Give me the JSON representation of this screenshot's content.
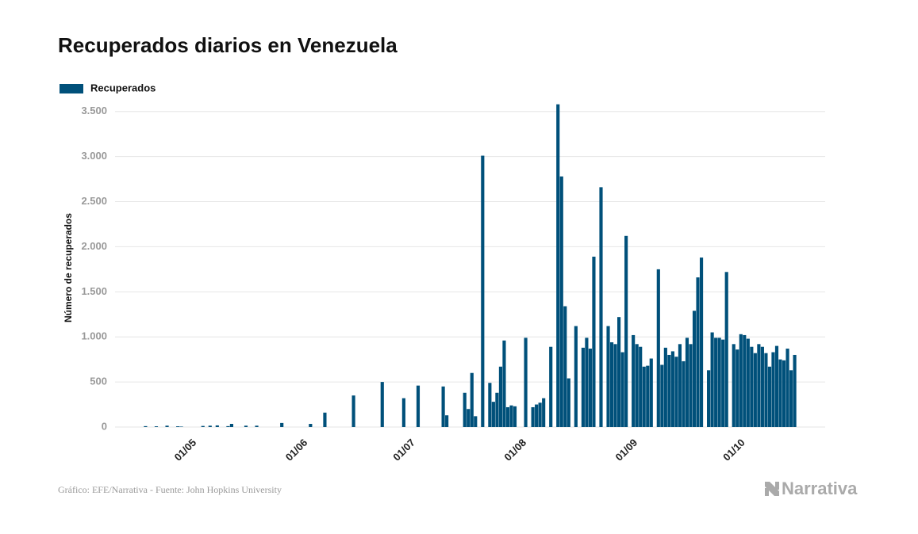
{
  "chart_data": {
    "type": "bar",
    "title": "Recuperados diarios en Venezuela",
    "y_label": "Número de recuperados",
    "source": "Gráfico: EFE/Narrativa - Fuente: John Hopkins University",
    "logo": "Narrativa",
    "grid": true,
    "ylim": [
      0,
      3700
    ],
    "yticks": [
      0,
      500,
      {
        "value": 1000,
        "label": "1.000"
      },
      {
        "value": 1500,
        "label": "1.500"
      },
      {
        "value": 2000,
        "label": "2.000"
      },
      {
        "value": 2500,
        "label": "2.500"
      },
      {
        "value": 3000,
        "label": "3.000"
      },
      {
        "value": 3500,
        "label": "3.500"
      }
    ],
    "categories": [
      null,
      null,
      null,
      null,
      null,
      null,
      null,
      null,
      null,
      null,
      null,
      null,
      null,
      null,
      null,
      null,
      null,
      null,
      null,
      null,
      "01/05",
      null,
      null,
      null,
      null,
      null,
      null,
      null,
      null,
      null,
      null,
      null,
      null,
      null,
      null,
      null,
      null,
      null,
      null,
      null,
      null,
      null,
      null,
      null,
      null,
      null,
      null,
      null,
      null,
      null,
      null,
      "01/06",
      null,
      null,
      null,
      null,
      null,
      null,
      null,
      null,
      null,
      null,
      null,
      null,
      null,
      null,
      null,
      null,
      null,
      null,
      null,
      null,
      null,
      null,
      null,
      null,
      null,
      null,
      null,
      null,
      null,
      "01/07",
      null,
      null,
      null,
      null,
      null,
      null,
      null,
      null,
      null,
      null,
      null,
      null,
      null,
      null,
      null,
      null,
      null,
      null,
      null,
      null,
      null,
      null,
      null,
      null,
      null,
      null,
      null,
      null,
      null,
      null,
      "01/08",
      null,
      null,
      null,
      null,
      null,
      null,
      null,
      null,
      null,
      null,
      null,
      null,
      null,
      null,
      null,
      null,
      null,
      null,
      null,
      null,
      null,
      null,
      null,
      null,
      null,
      null,
      null,
      null,
      null,
      null,
      "01/09",
      null,
      null,
      null,
      null,
      null,
      null,
      null,
      null,
      null,
      null,
      null,
      null,
      null,
      null,
      null,
      null,
      null,
      null,
      null,
      null,
      null,
      null,
      null,
      null,
      null,
      null,
      null,
      null,
      null,
      "01/10",
      null,
      null,
      null,
      null,
      null,
      null,
      null,
      null,
      null,
      null,
      null,
      null,
      null,
      null,
      null,
      null,
      null,
      null,
      null,
      null,
      null,
      null,
      null,
      null
    ],
    "series": [
      {
        "name": "Recuperados",
        "color": "#00507a",
        "values": [
          0,
          0,
          0,
          0,
          0,
          0,
          0,
          0,
          10,
          0,
          0,
          8,
          0,
          0,
          15,
          0,
          0,
          8,
          5,
          0,
          0,
          0,
          0,
          0,
          12,
          0,
          15,
          0,
          18,
          0,
          0,
          10,
          35,
          0,
          0,
          0,
          15,
          0,
          0,
          15,
          0,
          0,
          0,
          0,
          0,
          0,
          45,
          0,
          0,
          0,
          0,
          0,
          0,
          0,
          35,
          0,
          0,
          0,
          160,
          0,
          0,
          0,
          0,
          0,
          0,
          0,
          350,
          0,
          0,
          0,
          0,
          0,
          0,
          0,
          500,
          0,
          0,
          0,
          0,
          0,
          320,
          0,
          0,
          0,
          460,
          0,
          0,
          0,
          0,
          0,
          0,
          450,
          130,
          0,
          0,
          0,
          0,
          380,
          200,
          600,
          120,
          0,
          3010,
          0,
          490,
          280,
          380,
          670,
          960,
          220,
          240,
          230,
          0,
          0,
          990,
          0,
          220,
          250,
          270,
          320,
          0,
          890,
          0,
          3580,
          2780,
          1340,
          540,
          0,
          1120,
          0,
          880,
          990,
          870,
          1890,
          0,
          2660,
          0,
          1120,
          940,
          920,
          1220,
          830,
          2120,
          0,
          1020,
          920,
          890,
          670,
          680,
          760,
          0,
          1750,
          690,
          880,
          800,
          840,
          780,
          920,
          730,
          990,
          920,
          1290,
          1660,
          1880,
          0,
          630,
          1050,
          990,
          990,
          970,
          1720,
          0,
          920,
          860,
          1030,
          1020,
          980,
          890,
          820,
          920,
          890,
          820,
          670,
          830,
          900,
          750,
          740,
          870,
          630,
          800,
          0,
          0,
          0,
          0,
          0,
          0,
          0,
          0
        ]
      }
    ]
  }
}
